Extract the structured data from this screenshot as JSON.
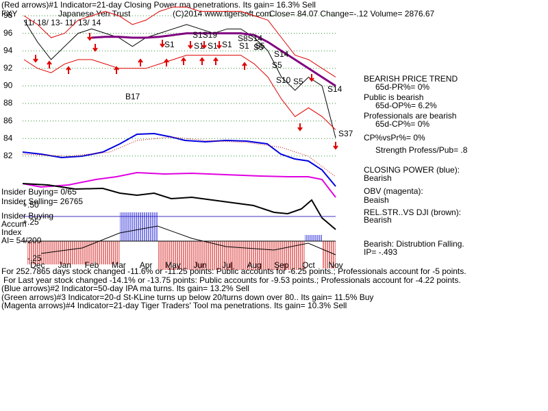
{
  "chart_data": {
    "type": "line",
    "title": "(Red arrows)#1 Indicator=21-day Closing Power ma penetrations.  Its gain= 16.3% Sell",
    "symbol": "FXY",
    "name": "Japanese Yen Trust",
    "source": "(C)2014 www.tigersoft.com",
    "quote": "Close=  84.07  Change=-.12 Volume= 2876.67",
    "date_range": "11/ 18/ 13-  11/ 13/ 14",
    "categories": [
      null,
      "Dec",
      null,
      "Jan",
      null,
      "Feb",
      null,
      "Mar",
      null,
      "Apr",
      null,
      "May",
      null,
      "Jun",
      null,
      "Jul",
      null,
      "Aug",
      null,
      "Sep",
      null,
      "Oct",
      null,
      "Nov"
    ],
    "ylim": [
      81.5,
      99.5
    ],
    "yticks": [
      82,
      84,
      86,
      88,
      90,
      92,
      94,
      96,
      98
    ],
    "grid": true,
    "series": [
      {
        "name": "Price",
        "color": "#000000",
        "values": [
          97.5,
          95,
          93,
          94.5,
          96,
          96.5,
          96,
          95.5,
          94.5,
          95.5,
          96,
          96.5,
          97,
          96.5,
          96,
          96.5,
          96.5,
          95.5,
          94,
          91,
          89.5,
          91,
          90,
          84.07
        ]
      },
      {
        "name": "Upper band",
        "color": "#e00000",
        "values": [
          98,
          97,
          95.5,
          96,
          97.5,
          98,
          98.5,
          98,
          97,
          97.5,
          98.5,
          99,
          99,
          98.5,
          98.5,
          98.5,
          98.5,
          98,
          97.5,
          95.5,
          93.5,
          93,
          92,
          91
        ]
      },
      {
        "name": "Lower band",
        "color": "#e00000",
        "values": [
          93,
          92,
          91.5,
          92.5,
          93,
          93,
          92.5,
          92,
          92,
          92,
          92.5,
          93,
          93.5,
          93.5,
          93.5,
          93.5,
          93.5,
          92.5,
          91,
          88.5,
          86.5,
          87.5,
          86.5,
          85
        ]
      },
      {
        "name": "Moving average",
        "color": "#800080",
        "values": [
          null,
          null,
          null,
          null,
          null,
          95.5,
          95.6,
          95.6,
          95.5,
          95.5,
          95.6,
          95.8,
          96,
          96,
          96,
          96,
          96,
          95.8,
          95,
          94,
          93,
          92,
          91,
          90
        ]
      }
    ],
    "signals": [
      "S1S19",
      "S8S14",
      "S1",
      "S1",
      "S1",
      "S1",
      "S1",
      "S5",
      "S5",
      "S14",
      "S5",
      "S10",
      "S5",
      "S14",
      "S37",
      "B17"
    ],
    "side_labels": [
      "BEARISH PRICE TREND",
      "65d-PR%= 0%",
      "Public is bearish",
      "65d-OP%= 6.2%",
      "Professionals are bearish",
      "65d-CP%= 0%",
      "CP%vsPr%=  0%",
      "Strength Profess/Pub= .8",
      "CLOSING POWER (blue):",
      "Bearish",
      "OBV (magenta):",
      "Beaish",
      "REL.STR..VS DJI (brown):",
      "Bearish",
      "Bearish: Distrubtion Falling.",
      "IP= -.493"
    ],
    "left_labels": [
      "Insider Buying= 0/65",
      "Insider Selling= 26765",
      "+.50",
      "Insider Buying",
      "Accum",
      "+.25",
      "Index",
      "AI= 54/200",
      "-.25"
    ],
    "notes": [
      "For 252.7865 days stock changed -11.6% or -11.25 points:  Public accounts for -6.25 points.;  Professionals account for -5 points.",
      "For Last year stock changed -14.1% or -13.75 points:  Public accounts for -9.53 points.;  Professionals account for -4.22 points.",
      "(Blue arrows)#2 Indicator=50-day IPA ma turns.  Its gain= 13.2% Sell",
      "(Green arrows)#3 Indicator=20-d St-KLine turns up below 20/turns down over 80..  Its gain= 11.5% Buy",
      "(Magenta arrows)#4 Indicator=21-day Tiger Traders' Tool ma penetrations.  Its gain= 10.3% Sell"
    ]
  }
}
